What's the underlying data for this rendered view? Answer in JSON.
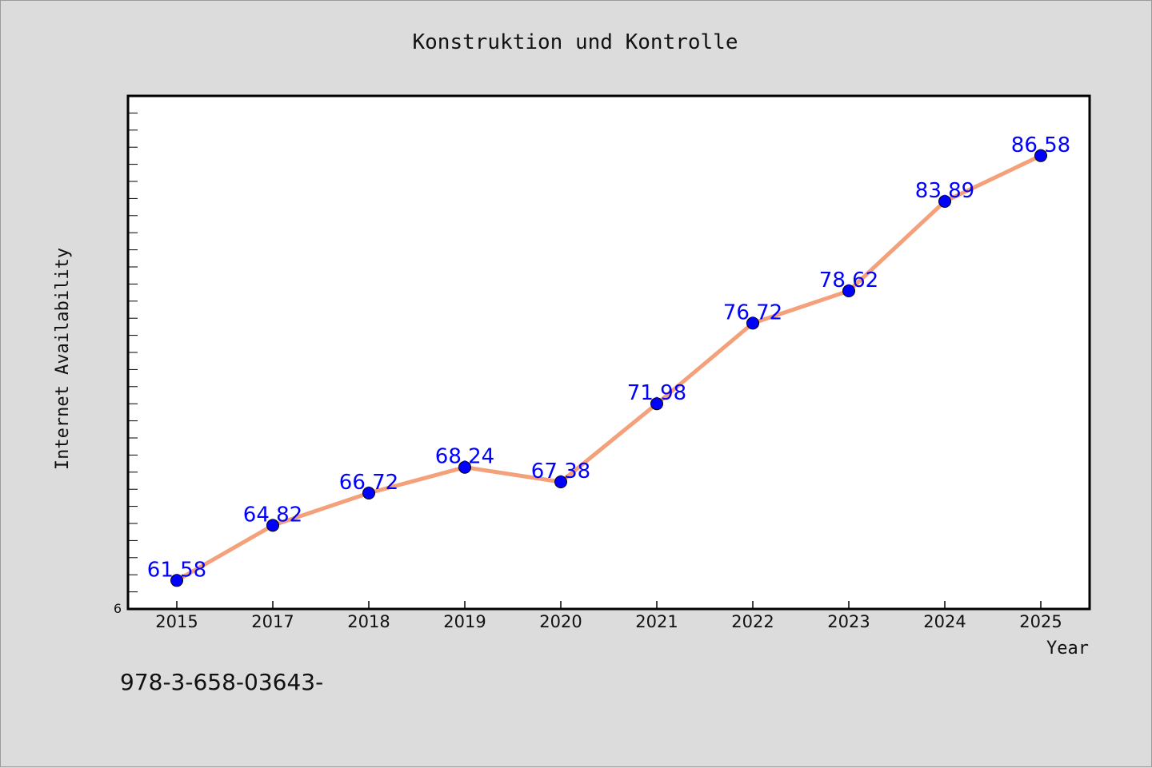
{
  "chart_data": {
    "type": "line",
    "title": "Konstruktion und Kontrolle",
    "xlabel": "Year",
    "ylabel": "Internet Availability",
    "categories": [
      "2015",
      "2017",
      "2018",
      "2019",
      "2020",
      "2021",
      "2022",
      "2023",
      "2024",
      "2025"
    ],
    "series": [
      {
        "values": [
          61.58,
          64.82,
          66.72,
          68.24,
          67.38,
          71.98,
          76.72,
          78.62,
          83.89,
          86.58
        ],
        "labels": [
          "61.58",
          "64.82",
          "66.72",
          "68.24",
          "67.38",
          "71.98",
          "76.72",
          "78.62",
          "83.89",
          "86.58"
        ],
        "line_color": "#f4a07a",
        "marker_color": "#0000ff"
      }
    ],
    "y_tick_label": "6",
    "ylim": [
      59.9,
      90.1
    ],
    "grid": false,
    "legend": "none"
  },
  "footnote": "978-3-658-03643-",
  "colors": {
    "background": "#dcdcdc",
    "plot_background": "#ffffff",
    "axis": "#000000"
  }
}
